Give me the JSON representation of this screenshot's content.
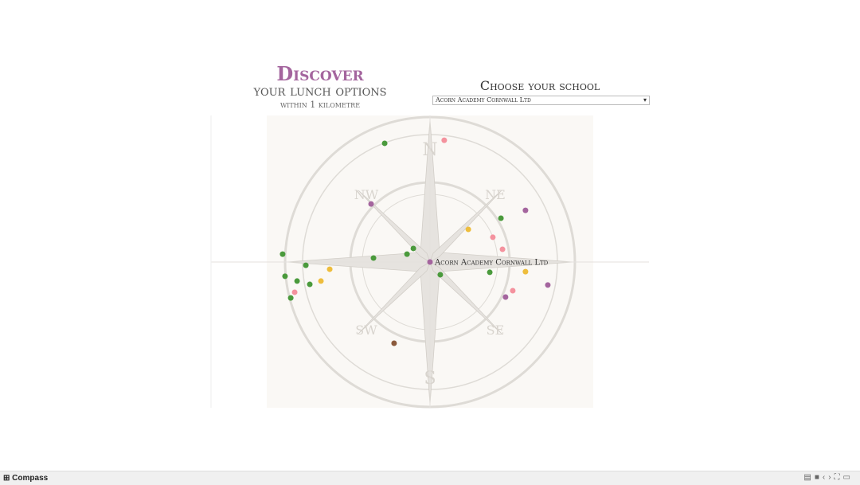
{
  "header": {
    "title": "Discover",
    "subtitle": "your lunch options",
    "note": "within 1 kilometre"
  },
  "selector": {
    "label": "Choose your school",
    "selected": "Acorn Academy Cornwall Ltd"
  },
  "chart_data": {
    "type": "scatter",
    "xlim": [
      -1,
      1
    ],
    "ylim": [
      -1,
      1
    ],
    "school": {
      "name": "Acorn Academy Cornwall Ltd",
      "x": 0,
      "y": 0,
      "color": "#a4659e"
    },
    "x": [
      -0.207,
      0.065,
      -0.269,
      0.436,
      0.324,
      0.175,
      0.287,
      0.331,
      -0.076,
      -0.105,
      -0.673,
      -0.258,
      -0.567,
      -0.458,
      0.273,
      0.047,
      0.436,
      -0.662,
      -0.607,
      -0.498,
      -0.549,
      0.538,
      0.378,
      -0.618,
      0.345,
      -0.636,
      -0.164
    ],
    "y": [
      0.542,
      0.556,
      0.265,
      0.236,
      0.2,
      0.149,
      0.113,
      0.058,
      0.062,
      0.036,
      0.036,
      0.018,
      -0.015,
      -0.033,
      -0.047,
      -0.058,
      -0.044,
      -0.065,
      -0.087,
      -0.087,
      -0.102,
      -0.105,
      -0.131,
      -0.138,
      -0.16,
      -0.164,
      -0.371
    ],
    "colors": [
      "#4a9a3c",
      "#f4929e",
      "#a4659e",
      "#a4659e",
      "#4a9a3c",
      "#eebd3c",
      "#f4929e",
      "#f4929e",
      "#4a9a3c",
      "#4a9a3c",
      "#4a9a3c",
      "#4a9a3c",
      "#4a9a3c",
      "#eebd3c",
      "#4a9a3c",
      "#4a9a3c",
      "#eebd3c",
      "#4a9a3c",
      "#4a9a3c",
      "#eebd3c",
      "#4a9a3c",
      "#a4659e",
      "#f4929e",
      "#f4929e",
      "#a4659e",
      "#4a9a3c",
      "#8b5a3c"
    ]
  },
  "footer": {
    "tab": "Compass"
  }
}
